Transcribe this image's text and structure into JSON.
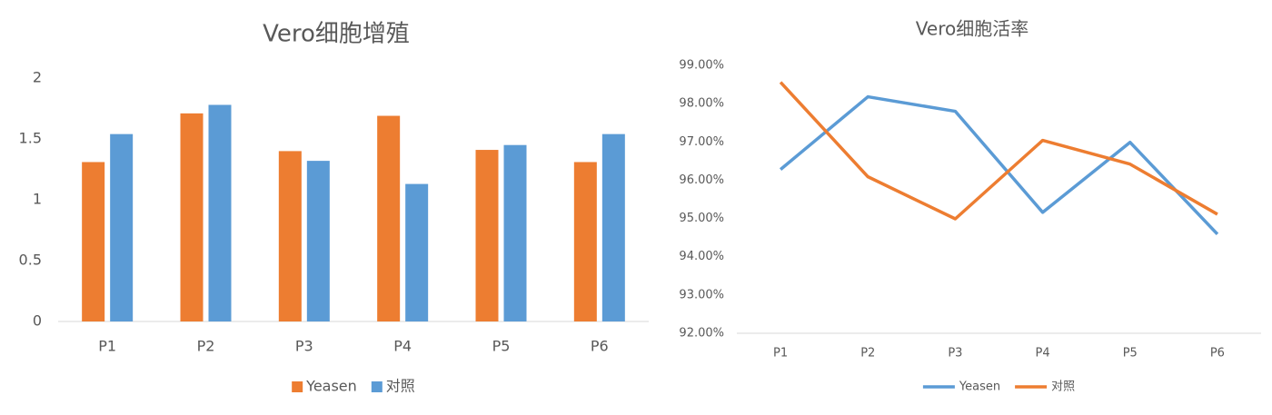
{
  "chart_data": [
    {
      "type": "bar",
      "title": "Vero细胞增殖",
      "categories": [
        "P1",
        "P2",
        "P3",
        "P4",
        "P5",
        "P6"
      ],
      "series": [
        {
          "name": "Yeasen",
          "color": "#ed7d31",
          "values": [
            1.31,
            1.71,
            1.4,
            1.69,
            1.41,
            1.31
          ]
        },
        {
          "name": "对照",
          "color": "#5b9bd5",
          "values": [
            1.54,
            1.78,
            1.32,
            1.13,
            1.45,
            1.54
          ]
        }
      ],
      "ylim": [
        0,
        2
      ],
      "yticks": [
        0,
        0.5,
        1,
        1.5,
        2
      ],
      "legend": "bottom"
    },
    {
      "type": "line",
      "title": "Vero细胞活率",
      "categories": [
        "P1",
        "P2",
        "P3",
        "P4",
        "P5",
        "P6"
      ],
      "series": [
        {
          "name": "Yeasen",
          "color": "#5b9bd5",
          "values": [
            96.28,
            98.18,
            97.8,
            95.16,
            96.99,
            94.59
          ]
        },
        {
          "name": "对照",
          "color": "#ed7d31",
          "values": [
            98.56,
            96.09,
            94.99,
            97.04,
            96.42,
            95.11
          ]
        }
      ],
      "ylim": [
        92,
        99
      ],
      "yticks": [
        {
          "value": 92,
          "label": "92.00%"
        },
        {
          "value": 93,
          "label": "93.00%"
        },
        {
          "value": 94,
          "label": "94.00%"
        },
        {
          "value": 95,
          "label": "95.00%"
        },
        {
          "value": 96,
          "label": "96.00%"
        },
        {
          "value": 97,
          "label": "97.00%"
        },
        {
          "value": 98,
          "label": "98.00%"
        },
        {
          "value": 99,
          "label": "99.00%"
        }
      ],
      "legend": "bottom"
    }
  ]
}
